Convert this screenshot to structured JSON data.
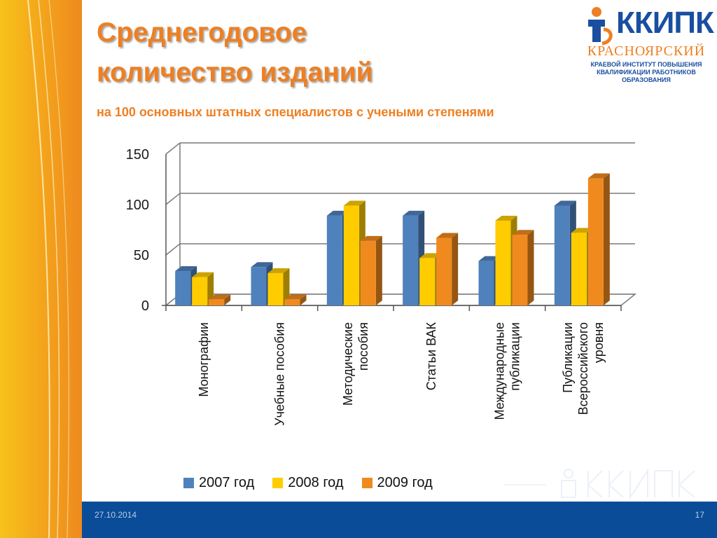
{
  "slide": {
    "title_line1": "Среднегодовое",
    "title_line2": "количество изданий",
    "subtitle": "на 100 основных штатных специалистов с учеными степенями",
    "footer_date": "27.10.2014",
    "footer_page": "17"
  },
  "logo": {
    "word": "ККИПК",
    "city": "КРАСНОЯРСКИЙ",
    "inst_line1": "КРАЕВОЙ ИНСТИТУТ ПОВЫШЕНИЯ",
    "inst_line2": "КВАЛИФИКАЦИИ РАБОТНИКОВ",
    "inst_line3": "ОБРАЗОВАНИЯ",
    "colors": {
      "blue": "#1a4fa0",
      "orange": "#ee7f22"
    }
  },
  "colors": {
    "accent": "#ee7f22",
    "footer": "#0a4c97",
    "series": [
      "#4f81bd",
      "#ffcc00",
      "#f08a1f"
    ]
  },
  "chart_data": {
    "type": "bar",
    "three_d": true,
    "categories": [
      [
        "Монографии"
      ],
      [
        "Учебные пособия"
      ],
      [
        "Методические",
        "пособия"
      ],
      [
        "Статьи ВАК"
      ],
      [
        "Международные",
        "публикации"
      ],
      [
        "Публикации",
        "Всероссийского",
        "уровня"
      ]
    ],
    "series": [
      {
        "name": "2007 год",
        "values": [
          34,
          38,
          89,
          89,
          44,
          99
        ]
      },
      {
        "name": "2008 год",
        "values": [
          28,
          32,
          99,
          47,
          84,
          72
        ]
      },
      {
        "name": "2009 год",
        "values": [
          6,
          6,
          64,
          67,
          70,
          126
        ]
      }
    ],
    "yticks": [
      "0",
      "50",
      "100",
      "150"
    ],
    "ylim": [
      0,
      150
    ],
    "grid": true,
    "legend": "bottom"
  }
}
